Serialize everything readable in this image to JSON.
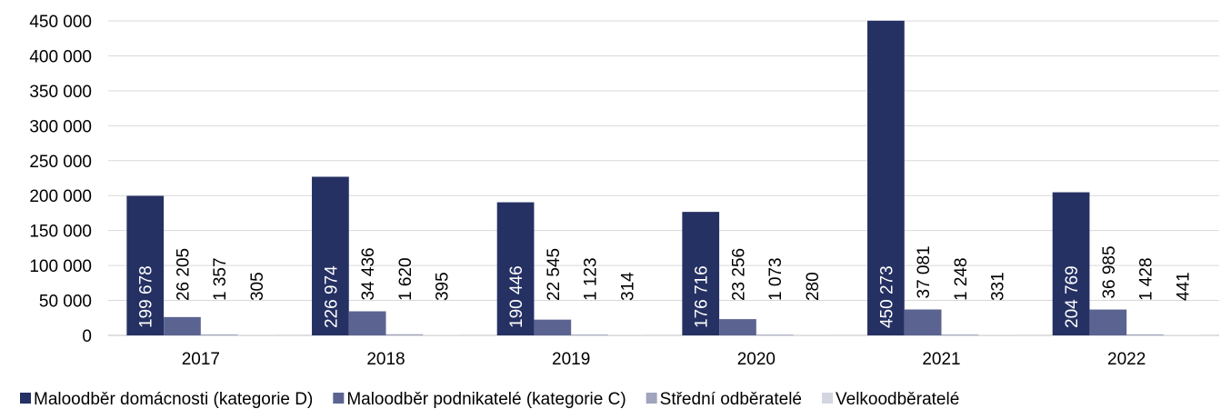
{
  "chart_data": {
    "type": "bar",
    "categories": [
      "2017",
      "2018",
      "2019",
      "2020",
      "2021",
      "2022"
    ],
    "series": [
      {
        "name": "Maloodběr domácnosti (kategorie D)",
        "color": "#253163",
        "values": [
          199678,
          226974,
          190446,
          176716,
          450273,
          204769
        ],
        "value_labels": [
          "199 678",
          "226 974",
          "190 446",
          "176 716",
          "450 273",
          "204 769"
        ]
      },
      {
        "name": "Maloodběr podnikatelé (kategorie C)",
        "color": "#5b6491",
        "values": [
          26205,
          34436,
          22545,
          23256,
          37081,
          36985
        ],
        "value_labels": [
          "26 205",
          "34 436",
          "22 545",
          "23 256",
          "37 081",
          "36 985"
        ]
      },
      {
        "name": "Střední odběratelé",
        "color": "#a0a4bd",
        "values": [
          1357,
          1620,
          1123,
          1073,
          1248,
          1428
        ],
        "value_labels": [
          "1 357",
          "1 620",
          "1 123",
          "1 073",
          "1 248",
          "1 428"
        ]
      },
      {
        "name": "Velkoodběratelé",
        "color": "#d3d5e0",
        "values": [
          305,
          395,
          314,
          280,
          331,
          441
        ]
      }
    ],
    "ylim": [
      0,
      450000
    ],
    "yticks": [
      0,
      {
        "value": 50000,
        "label": "50 000"
      },
      {
        "value": 100000,
        "label": "100 000"
      },
      {
        "value": 150000,
        "label": "150 000"
      },
      {
        "value": 200000,
        "label": "200 000"
      },
      {
        "value": 250000,
        "label": "250 000"
      },
      {
        "value": 300000,
        "label": "300 000"
      },
      {
        "value": 350000,
        "label": "350 000"
      },
      {
        "value": 400000,
        "label": "400 000"
      },
      {
        "value": 450000,
        "label": "450 000"
      }
    ],
    "grid": true,
    "legend": "bottom"
  }
}
